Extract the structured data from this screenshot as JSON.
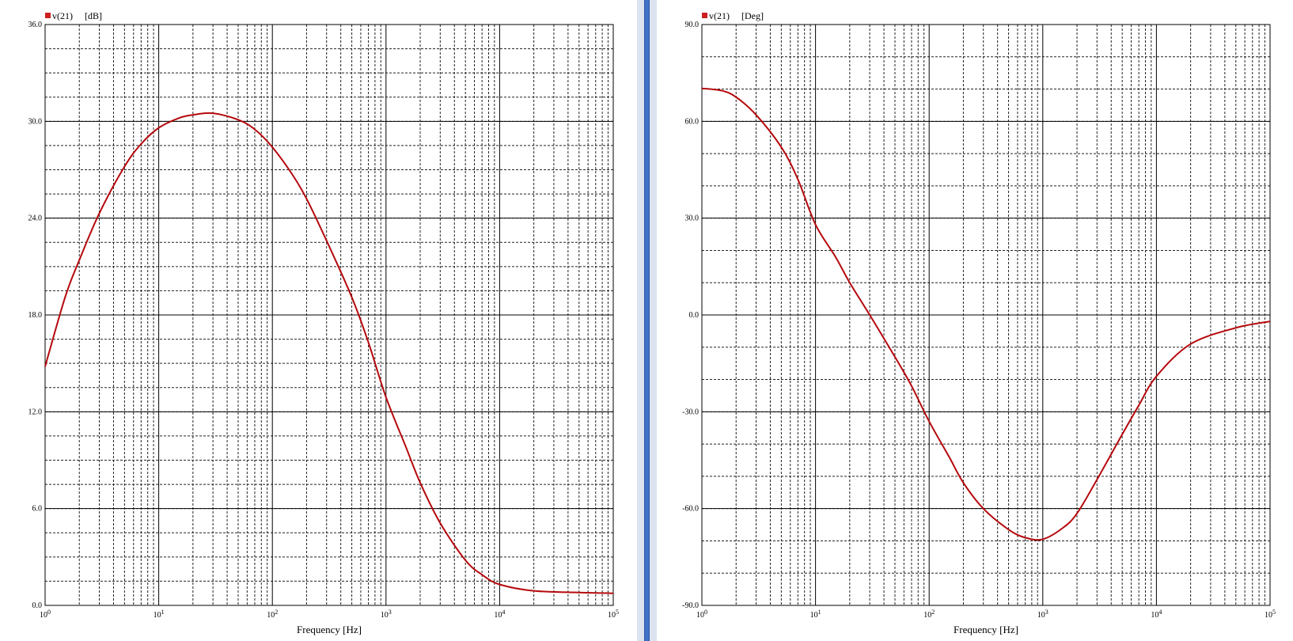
{
  "colors": {
    "trace": "#b5090d",
    "grid_major": "#000000",
    "grid_minor": "#222222",
    "divider": "#3f73c8"
  },
  "chart_data": [
    {
      "type": "line",
      "legend": {
        "marker_color": "#cc1f1f",
        "series_label": "v(21)",
        "unit": "[dB]",
        "placement": "top-left"
      },
      "xlabel": "Frequency [Hz]",
      "xscale": "log",
      "xlim": [
        1,
        100000
      ],
      "x_ticks": [
        {
          "base": "10",
          "exp": "0"
        },
        {
          "base": "10",
          "exp": "1"
        },
        {
          "base": "10",
          "exp": "2"
        },
        {
          "base": "10",
          "exp": "3"
        },
        {
          "base": "10",
          "exp": "4"
        },
        {
          "base": "10",
          "exp": "5"
        }
      ],
      "ylim": [
        0,
        36
      ],
      "y_ticks": [
        "0.0",
        "6.0",
        "12.0",
        "18.0",
        "24.0",
        "30.0",
        "36.0"
      ],
      "y_minor_step": 1.5,
      "grid": true,
      "series": [
        {
          "x": [
            1,
            1.5,
            2,
            3,
            5,
            7,
            10,
            15,
            20,
            30,
            50,
            70,
            100,
            150,
            200,
            300,
            500,
            700,
            1000,
            1500,
            2000,
            3000,
            5000,
            7000,
            10000,
            20000,
            50000,
            100000
          ],
          "y": [
            14.8,
            19.1,
            21.4,
            24.3,
            27.2,
            28.6,
            29.6,
            30.2,
            30.4,
            30.5,
            30.1,
            29.5,
            28.4,
            26.7,
            25.2,
            22.6,
            19.1,
            16.3,
            12.9,
            9.8,
            7.6,
            5.1,
            2.8,
            1.9,
            1.3,
            0.9,
            0.8,
            0.75
          ]
        }
      ]
    },
    {
      "type": "line",
      "legend": {
        "marker_color": "#cc1f1f",
        "series_label": "v(21)",
        "unit": "[Deg]",
        "placement": "top-left"
      },
      "xlabel": "Frequency [Hz]",
      "xscale": "log",
      "xlim": [
        1,
        100000
      ],
      "x_ticks": [
        {
          "base": "10",
          "exp": "0"
        },
        {
          "base": "10",
          "exp": "1"
        },
        {
          "base": "10",
          "exp": "2"
        },
        {
          "base": "10",
          "exp": "3"
        },
        {
          "base": "10",
          "exp": "4"
        },
        {
          "base": "10",
          "exp": "5"
        }
      ],
      "ylim": [
        -90,
        90
      ],
      "y_ticks": [
        "-90.0",
        "-60.0",
        "-30.0",
        "0.0",
        "30.0",
        "60.0",
        "90.0"
      ],
      "y_minor_step": 10,
      "grid": true,
      "series": [
        {
          "x": [
            1,
            1.5,
            2,
            3,
            5,
            7,
            10,
            15,
            20,
            30,
            50,
            70,
            100,
            150,
            200,
            300,
            500,
            700,
            1000,
            1500,
            2000,
            3000,
            5000,
            7000,
            10000,
            20000,
            50000,
            100000
          ],
          "y": [
            70.2,
            69.5,
            67.5,
            62,
            52,
            42,
            28,
            18,
            10,
            0,
            -13,
            -22,
            -33,
            -44,
            -52,
            -60,
            -66.5,
            -69,
            -69.5,
            -66,
            -61.5,
            -51,
            -37,
            -28,
            -19,
            -9,
            -4,
            -2
          ]
        }
      ]
    }
  ]
}
